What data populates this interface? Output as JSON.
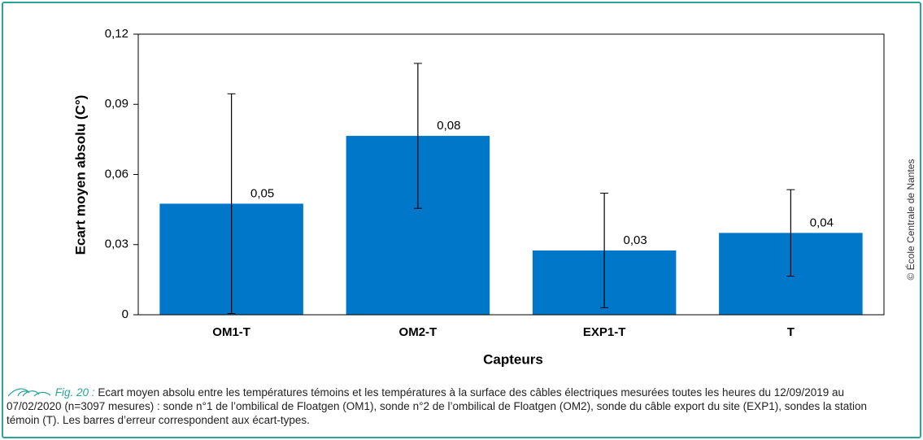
{
  "chart_data": {
    "type": "bar",
    "y_label": "Ecart moyen absolu (C°)",
    "x_label": "Capteurs",
    "categories": [
      "OM1-T",
      "OM2-T",
      "EXP1-T",
      "T"
    ],
    "values": [
      0.0475,
      0.0765,
      0.0275,
      0.035
    ],
    "value_labels": [
      "0,05",
      "0,08",
      "0,03",
      "0,04"
    ],
    "errors": [
      0.047,
      0.031,
      0.0245,
      0.0185
    ],
    "color": "#0077c8",
    "ylim": [
      0,
      0.12
    ],
    "yticks": [
      0,
      {
        "value": 0.03,
        "label": "0,03"
      },
      {
        "value": 0.06,
        "label": "0,06"
      },
      {
        "value": 0.09,
        "label": "0,09"
      },
      {
        "value": 0.12,
        "label": "0,12"
      }
    ],
    "grid": false
  },
  "caption": {
    "label": "Fig. 20 :",
    "text": "Ecart moyen absolu entre les températures témoins et les températures à la surface des câbles électriques mesurées toutes les heures du 12/09/2019 au 07/02/2020 (n=3097 mesures) : sonde n°1 de l’ombilical de Floatgen (OM1), sonde n°2 de l’ombilical de Floatgen (OM2), sonde du câble export du site (EXP1), sondes la station témoin (T). Les barres d’erreur correspondent aux écart-types."
  },
  "copyright": "© École Centrale de Nantes"
}
